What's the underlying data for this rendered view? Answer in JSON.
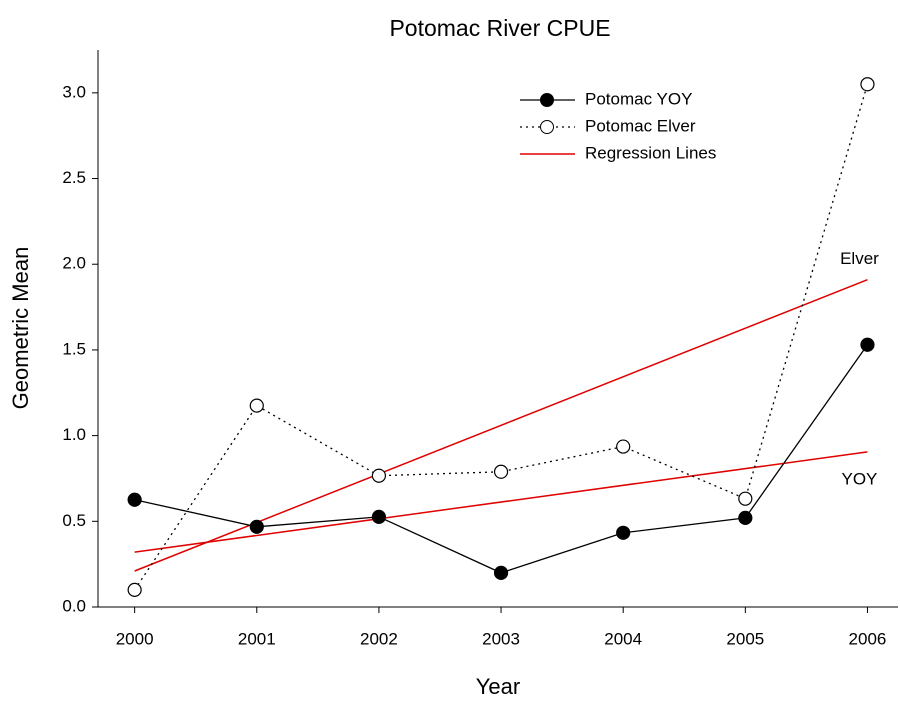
{
  "chart_data": {
    "type": "line",
    "title": "Potomac River CPUE",
    "x_label": "Year",
    "y_label": "Geometric Mean",
    "x": [
      2000,
      2001,
      2002,
      2003,
      2004,
      2005,
      2006
    ],
    "series": [
      {
        "name": "Potomac YOY",
        "color": "#000000",
        "marker": "filled",
        "dash": "solid",
        "values": [
          0.626,
          0.468,
          0.526,
          0.199,
          0.433,
          0.52,
          1.53
        ]
      },
      {
        "name": "Potomac Elver",
        "color": "#000000",
        "marker": "open",
        "dash": "dotted",
        "values": [
          0.1,
          1.175,
          0.766,
          0.789,
          0.936,
          0.632,
          3.05
        ]
      }
    ],
    "regression_lines": {
      "name": "Regression Lines",
      "color": "#e00000",
      "lines": [
        {
          "label": "Elver",
          "x": [
            2000,
            2006
          ],
          "values": [
            0.21,
            1.91
          ]
        },
        {
          "label": "YOY",
          "x": [
            2000,
            2006
          ],
          "values": [
            0.32,
            0.905
          ]
        }
      ]
    },
    "xlim": [
      1999.7,
      2006.25
    ],
    "ylim": [
      0,
      3.25
    ],
    "xticks": [
      2000,
      2001,
      2002,
      2003,
      2004,
      2005,
      2006
    ],
    "yticks": [
      {
        "value": 0,
        "label": "0.0"
      },
      {
        "value": 0.5,
        "label": "0.5"
      },
      {
        "value": 1,
        "label": "1.0"
      },
      {
        "value": 1.5,
        "label": "1.5"
      },
      {
        "value": 2,
        "label": "2.0"
      },
      {
        "value": 2.5,
        "label": "2.5"
      },
      {
        "value": 3,
        "label": "3.0"
      }
    ],
    "legend": "top-right"
  }
}
